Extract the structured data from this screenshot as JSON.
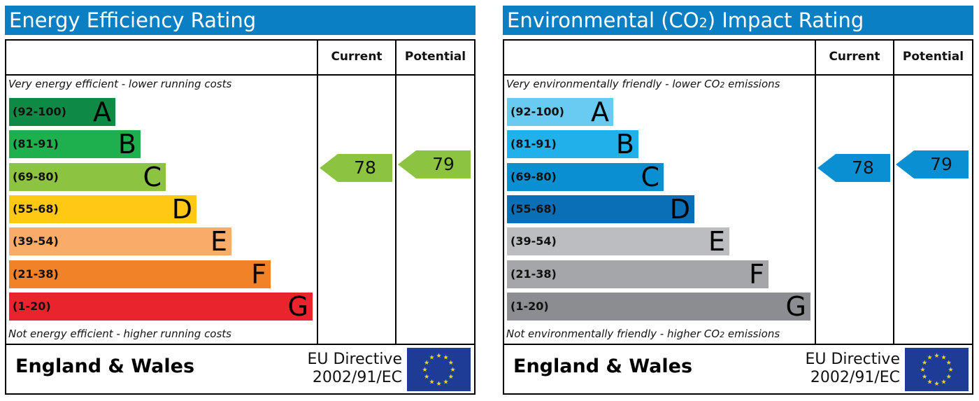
{
  "colors": {
    "title_bar": "#0a7fc4",
    "eu_flag_blue": "#1f3c94",
    "eu_flag_star": "#ffd600"
  },
  "panels": [
    {
      "title": "Energy Efficiency Rating",
      "col_current": "Current",
      "col_potential": "Potential",
      "top_note": "Very energy efficient - lower running costs",
      "bottom_note": "Not energy efficient - higher running costs",
      "region": "England & Wales",
      "directive_line1": "EU Directive",
      "directive_line2": "2002/91/EC"
    },
    {
      "title_before": "Environmental (CO",
      "title_sub": "2",
      "title_after": ") Impact Rating",
      "col_current": "Current",
      "col_potential": "Potential",
      "top_note_before": "Very environmentally friendly - lower CO",
      "top_note_sub": "2",
      "top_note_after": " emissions",
      "bottom_note_before": "Not environmentally friendly - higher CO",
      "bottom_note_sub": "2",
      "bottom_note_after": " emissions",
      "region": "England & Wales",
      "directive_line1": "EU Directive",
      "directive_line2": "2002/91/EC"
    }
  ],
  "chart_data": [
    {
      "type": "bar",
      "title": "Energy Efficiency Rating",
      "categories": [
        "A",
        "B",
        "C",
        "D",
        "E",
        "F",
        "G"
      ],
      "ranges": [
        "(92-100)",
        "(81-91)",
        "(69-80)",
        "(55-68)",
        "(39-54)",
        "(21-38)",
        "(1-20)"
      ],
      "colors": [
        "#0e8a44",
        "#1eb04e",
        "#8cc340",
        "#fec814",
        "#f9ac6a",
        "#f28227",
        "#e9242d"
      ],
      "current": {
        "value": 78,
        "band": "C",
        "color": "#8cc340"
      },
      "potential": {
        "value": 79,
        "band": "C",
        "color": "#8cc340"
      }
    },
    {
      "type": "bar",
      "title": "Environmental (CO2) Impact Rating",
      "categories": [
        "A",
        "B",
        "C",
        "D",
        "E",
        "F",
        "G"
      ],
      "ranges": [
        "(92-100)",
        "(81-91)",
        "(69-80)",
        "(55-68)",
        "(39-54)",
        "(21-38)",
        "(1-20)"
      ],
      "colors": [
        "#6acbf2",
        "#21b1ea",
        "#0a90d2",
        "#0b6fb7",
        "#bcbdc0",
        "#a5a6a9",
        "#8c8d91"
      ],
      "current": {
        "value": 78,
        "band": "C",
        "color": "#0a90d2"
      },
      "potential": {
        "value": 79,
        "band": "C",
        "color": "#0a90d2"
      }
    }
  ]
}
